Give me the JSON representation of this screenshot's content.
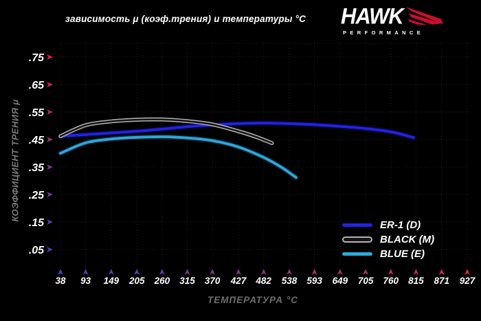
{
  "title": "зависимость μ (коэф.трения) и температуры °C",
  "logo": {
    "brand": "HAWK",
    "tagline": "PERFORMANCE",
    "accent_color": "#c8102e"
  },
  "chart_data": {
    "type": "line",
    "title": "зависимость μ (коэф.трения) и температуры °C",
    "xlabel": "ТЕМПЕРАТУРА °C",
    "ylabel": "КОЭФФИЦИЕНТ ТРЕНИЯ μ",
    "xlim": [
      38,
      927
    ],
    "ylim": [
      0,
      0.8
    ],
    "x_ticks": [
      38,
      93,
      149,
      205,
      260,
      315,
      370,
      427,
      482,
      538,
      593,
      649,
      705,
      760,
      815,
      871,
      927
    ],
    "y_ticks": [
      0.05,
      0.15,
      0.25,
      0.35,
      0.45,
      0.55,
      0.65,
      0.75
    ],
    "y_tick_labels": [
      ".05",
      ".15",
      ".25",
      ".35",
      ".45",
      ".55",
      ".65",
      ".75"
    ],
    "grid": true,
    "grid_color": "#24242c",
    "axis_gradient": {
      "hot": "#d62840",
      "cold": "#4343c0"
    },
    "legend_position": "bottom-right",
    "series": [
      {
        "name": "ER-1 (D)",
        "style": "solid",
        "color": "#2222e6",
        "halo": "#1515a8",
        "points": [
          [
            38,
            0.462
          ],
          [
            93,
            0.468
          ],
          [
            149,
            0.474
          ],
          [
            205,
            0.48
          ],
          [
            260,
            0.488
          ],
          [
            315,
            0.497
          ],
          [
            370,
            0.503
          ],
          [
            427,
            0.508
          ],
          [
            482,
            0.51
          ],
          [
            538,
            0.508
          ],
          [
            593,
            0.504
          ],
          [
            649,
            0.498
          ],
          [
            705,
            0.49
          ],
          [
            760,
            0.478
          ],
          [
            810,
            0.457
          ]
        ]
      },
      {
        "name": "BLACK (M)",
        "style": "outlined",
        "color": "#b4b4b4",
        "core": "#141414",
        "points": [
          [
            38,
            0.462
          ],
          [
            93,
            0.502
          ],
          [
            149,
            0.516
          ],
          [
            205,
            0.522
          ],
          [
            260,
            0.523
          ],
          [
            315,
            0.517
          ],
          [
            370,
            0.505
          ],
          [
            427,
            0.48
          ],
          [
            465,
            0.46
          ],
          [
            500,
            0.437
          ]
        ]
      },
      {
        "name": "BLUE (E)",
        "style": "solid",
        "color": "#2fa7da",
        "halo": "#1b6e96",
        "points": [
          [
            38,
            0.4
          ],
          [
            93,
            0.438
          ],
          [
            149,
            0.452
          ],
          [
            205,
            0.458
          ],
          [
            260,
            0.46
          ],
          [
            315,
            0.456
          ],
          [
            370,
            0.446
          ],
          [
            427,
            0.423
          ],
          [
            482,
            0.385
          ],
          [
            520,
            0.35
          ],
          [
            553,
            0.312
          ]
        ]
      }
    ]
  }
}
